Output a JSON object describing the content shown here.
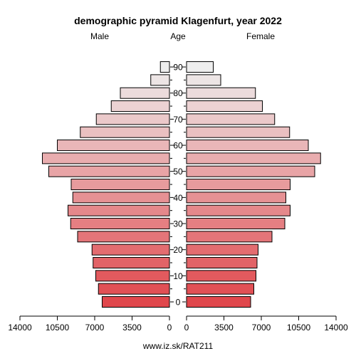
{
  "chart_data": {
    "type": "bar",
    "title": "demographic pyramid Klagenfurt, year 2022",
    "left_label": "Male",
    "center_label": "Age",
    "right_label": "Female",
    "footer": "www.iz.sk/RAT211",
    "age_groups": [
      "0",
      "5",
      "10",
      "15",
      "20",
      "25",
      "30",
      "35",
      "40",
      "45",
      "50",
      "55",
      "60",
      "65",
      "70",
      "75",
      "80",
      "85",
      "90"
    ],
    "age_tick_labels": [
      "0",
      "10",
      "20",
      "30",
      "40",
      "50",
      "60",
      "70",
      "80",
      "90"
    ],
    "series": [
      {
        "name": "Male",
        "values": [
          6300,
          6650,
          6900,
          7150,
          7250,
          8600,
          9250,
          9500,
          9050,
          9200,
          11300,
          11900,
          10500,
          8350,
          6850,
          5450,
          4600,
          1750,
          850
        ]
      },
      {
        "name": "Female",
        "values": [
          6000,
          6300,
          6500,
          6600,
          6700,
          8000,
          9200,
          9700,
          9300,
          9700,
          12000,
          12550,
          11400,
          9650,
          8250,
          7100,
          6450,
          3200,
          2500
        ]
      }
    ],
    "x_tick_labels_left": [
      "14000",
      "10500",
      "7000",
      "3500",
      "0"
    ],
    "x_tick_labels_right": [
      "0",
      "3500",
      "7000",
      "10500",
      "14000"
    ],
    "xlim": [
      0,
      14000
    ],
    "colors": {
      "young": "#e0474c",
      "old": "#eeeeee",
      "outline": "#000000"
    }
  }
}
